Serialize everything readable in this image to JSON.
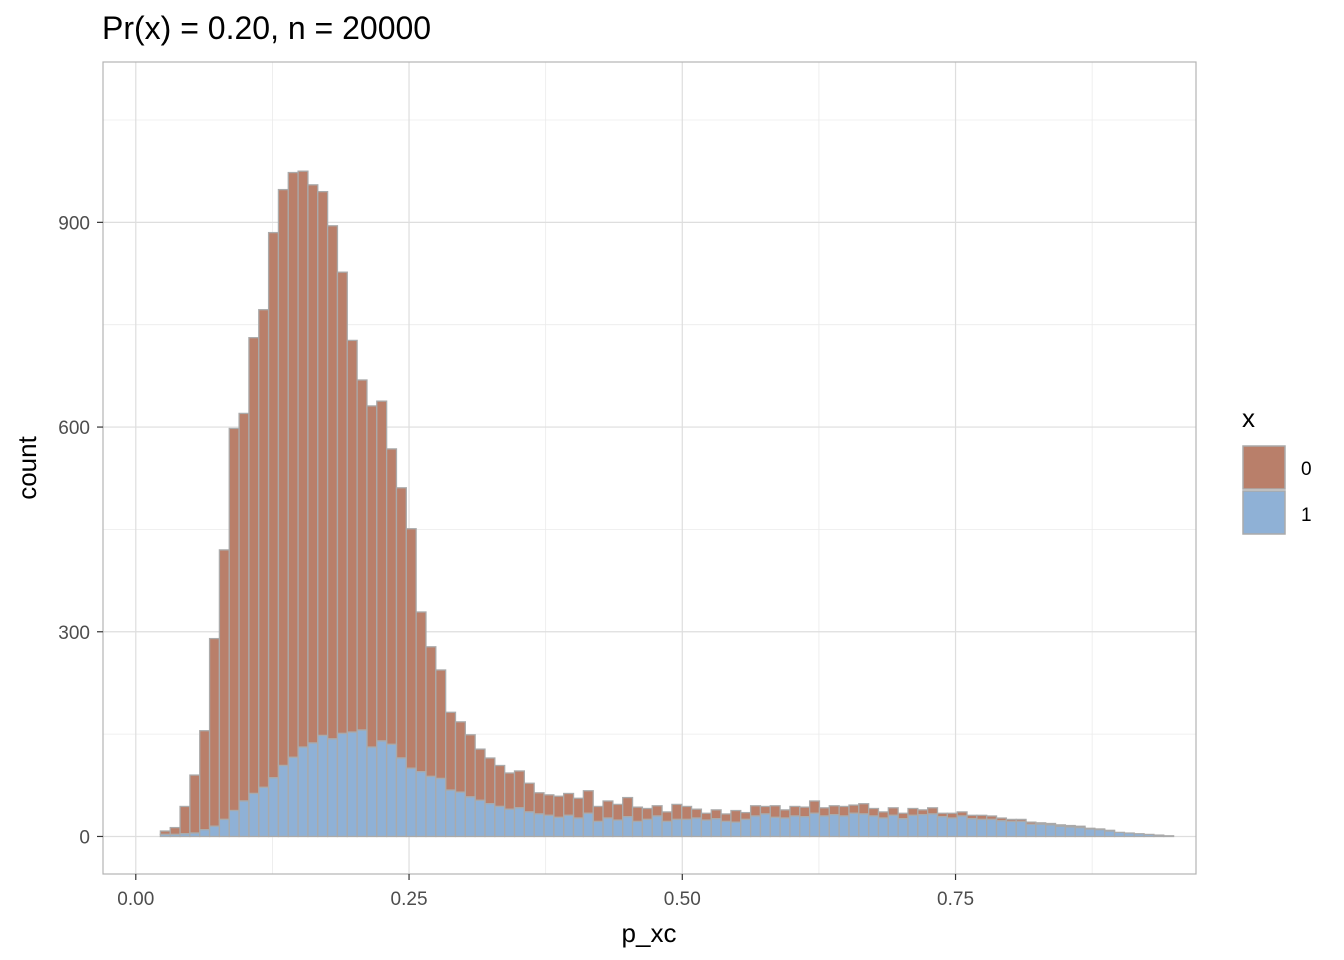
{
  "chart_data": {
    "type": "bar",
    "subtype": "stacked-histogram",
    "title": "Pr(x) = 0.20, n = 20000",
    "xlabel": "p_xc",
    "ylabel": "count",
    "xlim": [
      -0.03,
      0.97
    ],
    "ylim": [
      -55,
      1135
    ],
    "x_ticks": [
      {
        "value": 0,
        "label": "0.00"
      },
      {
        "value": 0.25,
        "label": "0.25"
      },
      {
        "value": 0.5,
        "label": "0.50"
      },
      {
        "value": 0.75,
        "label": "0.75"
      }
    ],
    "y_ticks": [
      {
        "value": 0,
        "label": "0"
      },
      {
        "value": 300,
        "label": "300"
      },
      {
        "value": 600,
        "label": "600"
      },
      {
        "value": 900,
        "label": "900"
      }
    ],
    "grid": true,
    "legend_position": "right",
    "legend_title": "x",
    "bin_start": 0.0225,
    "bin_width": 0.009,
    "colors": {
      "series_0": "#b97f6a",
      "series_1": "#8fb1d6",
      "bar_outline": "#aaaaaa"
    },
    "series": [
      {
        "name": "0",
        "values": [
          5,
          10,
          40,
          85,
          145,
          275,
          395,
          560,
          568,
          668,
          700,
          799,
          844,
          857,
          844,
          818,
          797,
          752,
          676,
          574,
          513,
          500,
          498,
          433,
          396,
          351,
          234,
          190,
          159,
          114,
          103,
          91,
          75,
          67,
          60,
          53,
          54,
          42,
          31,
          30,
          31,
          32,
          29,
          33,
          22,
          25,
          23,
          28,
          21,
          16,
          15,
          14,
          22,
          19,
          13,
          10,
          13,
          11,
          17,
          10,
          15,
          11,
          17,
          12,
          14,
          14,
          18,
          12,
          13,
          14,
          12,
          15,
          11,
          9,
          11,
          8,
          10,
          7,
          9,
          5,
          7,
          6,
          5,
          6,
          5,
          4,
          3,
          3,
          3,
          2,
          2,
          2,
          2,
          2,
          1,
          1,
          1,
          0,
          0,
          0,
          0,
          0,
          0
        ]
      },
      {
        "name": "1",
        "values": [
          3,
          3,
          4,
          5,
          10,
          15,
          25,
          38,
          52,
          63,
          72,
          86,
          104,
          116,
          131,
          137,
          148,
          143,
          151,
          153,
          156,
          131,
          140,
          135,
          115,
          100,
          95,
          88,
          85,
          68,
          65,
          58,
          53,
          48,
          44,
          40,
          42,
          36,
          33,
          31,
          28,
          31,
          27,
          34,
          22,
          27,
          24,
          29,
          22,
          25,
          30,
          22,
          25,
          25,
          27,
          24,
          26,
          22,
          21,
          25,
          30,
          33,
          28,
          27,
          30,
          29,
          34,
          30,
          32,
          30,
          34,
          33,
          30,
          27,
          31,
          26,
          31,
          32,
          33,
          29,
          27,
          30,
          26,
          25,
          25,
          23,
          22,
          22,
          18,
          18,
          17,
          15,
          14,
          13,
          11,
          10,
          8,
          6,
          5,
          4,
          3,
          2,
          1
        ]
      }
    ]
  }
}
